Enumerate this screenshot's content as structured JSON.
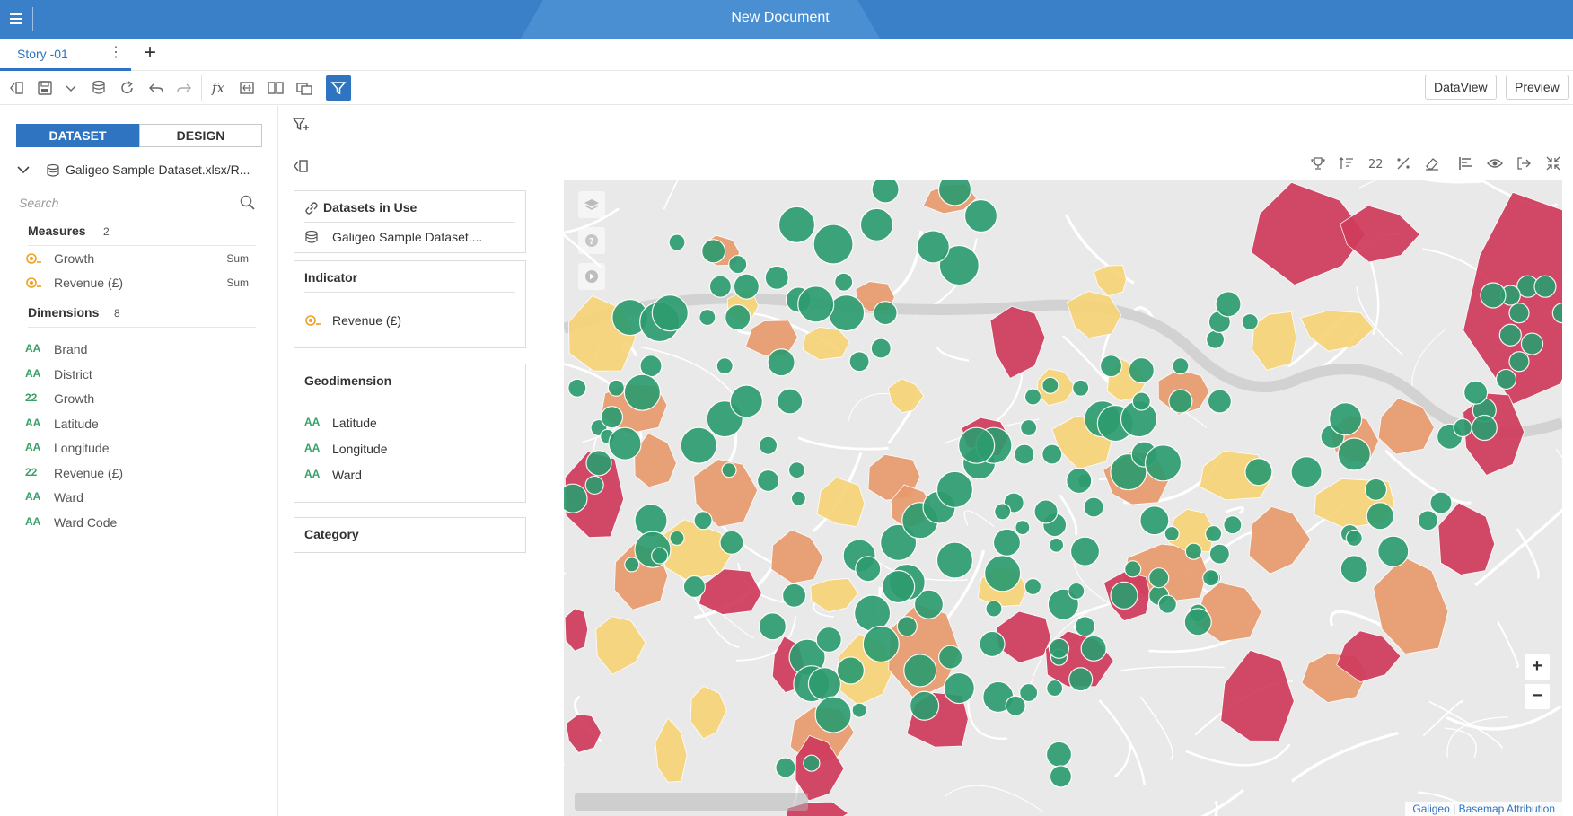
{
  "titlebar": {
    "title": "New Document",
    "menu_icon": "hamburger-icon"
  },
  "story_tabs": {
    "active": "Story -01",
    "more": "⋮",
    "add": "+"
  },
  "toolbar": {
    "icons": [
      "panel-toggle-icon",
      "save-icon",
      "chevron-down-icon",
      "data-source-icon",
      "refresh-icon",
      "undo-icon",
      "redo-icon",
      "formula-icon",
      "text-box-icon",
      "split-view-icon",
      "layers-icon",
      "filter-icon"
    ],
    "dataview_label": "DataView",
    "preview_label": "Preview"
  },
  "left": {
    "tabs": {
      "dataset": "DATASET",
      "design": "DESIGN"
    },
    "dataset_name": "Galigeo Sample Dataset.xlsx/R...",
    "search_placeholder": "Search",
    "measures": {
      "title": "Measures",
      "count": "2",
      "items": [
        {
          "label": "Growth",
          "agg": "Sum"
        },
        {
          "label": "Revenue (£)",
          "agg": "Sum"
        }
      ]
    },
    "dimensions": {
      "title": "Dimensions",
      "count": "8",
      "items": [
        {
          "label": "Brand",
          "icon": "AA"
        },
        {
          "label": "District",
          "icon": "AA"
        },
        {
          "label": "Growth",
          "icon": "22"
        },
        {
          "label": "Latitude",
          "icon": "AA"
        },
        {
          "label": "Longitude",
          "icon": "AA"
        },
        {
          "label": "Revenue (£)",
          "icon": "22"
        },
        {
          "label": "Ward",
          "icon": "AA"
        },
        {
          "label": "Ward Code",
          "icon": "AA"
        }
      ]
    }
  },
  "middle": {
    "datasets_title": "Datasets in Use",
    "dataset_item": "Galigeo Sample Dataset....",
    "indicator_title": "Indicator",
    "indicator_item": "Revenue (£)",
    "geodim_title": "Geodimension",
    "geodim_items": [
      "Latitude",
      "Longitude",
      "Ward"
    ],
    "category_title": "Category"
  },
  "map": {
    "tool_icons": [
      "trophy-icon",
      "sort-icon",
      "number-format-icon",
      "percent-icon",
      "eraser-icon",
      "align-icon",
      "eye-icon",
      "export-icon",
      "collapse-icon"
    ],
    "zoom_in": "+",
    "zoom_out": "−",
    "attribution_brand": "Galigeo",
    "attribution_sep": "|",
    "attribution_text": "Basemap Attribution",
    "colors": {
      "low": "#f7d477",
      "mid": "#e89a6d",
      "high": "#cf3b5c",
      "bubble": "#2e9c70"
    }
  }
}
